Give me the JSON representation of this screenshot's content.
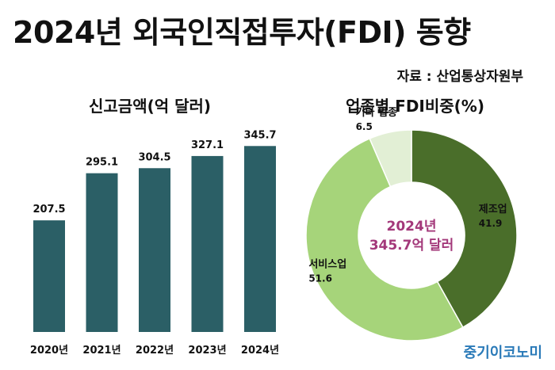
{
  "header": {
    "title": "2024년 외국인직접투자(FDI) 동향",
    "source": "자료 : 산업통상자원부"
  },
  "brand": "중기이코노미",
  "chart_data": [
    {
      "type": "bar",
      "title": "신고금액(억 달러)",
      "categories": [
        "2020년",
        "2021년",
        "2022년",
        "2023년",
        "2024년"
      ],
      "values": [
        207.5,
        295.1,
        304.5,
        327.1,
        345.7
      ],
      "value_labels": [
        "207.5",
        "295.1",
        "304.5",
        "327.1",
        "345.7"
      ],
      "bar_color": "#2b5f66",
      "ylim": [
        0,
        380
      ],
      "grid": false
    },
    {
      "type": "pie",
      "title": "업종별 FDI비중(%)",
      "donut": true,
      "center_label": [
        "2024년",
        "345.7억 달러"
      ],
      "center_color": "#a3387a",
      "slices": [
        {
          "label": "제조업",
          "value": 41.9,
          "value_label": "41.9",
          "color": "#4a6e2a"
        },
        {
          "label": "서비스업",
          "value": 51.6,
          "value_label": "51.6",
          "color": "#a6d47a"
        },
        {
          "label": "기타 업종",
          "value": 6.5,
          "value_label": "6.5",
          "color": "#e2efd5"
        }
      ]
    }
  ]
}
